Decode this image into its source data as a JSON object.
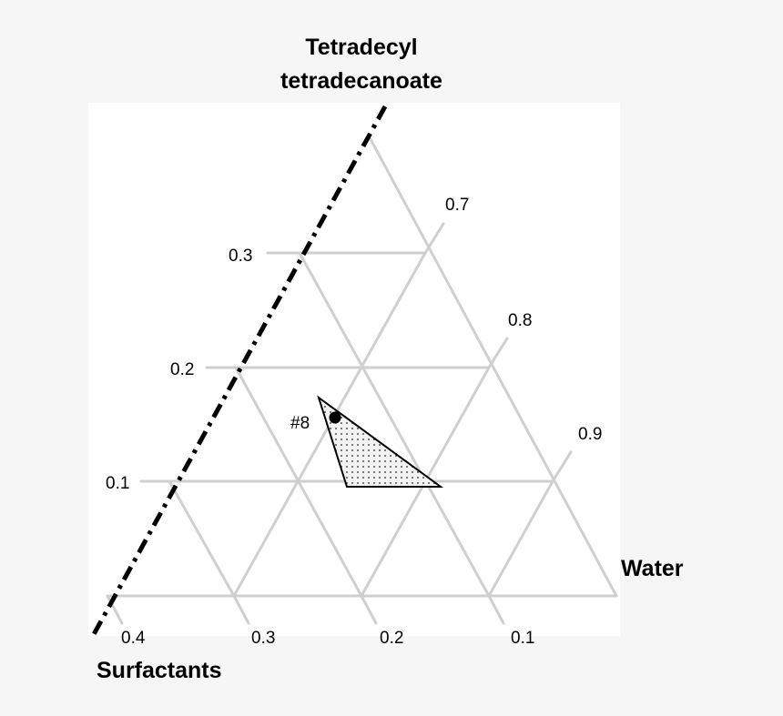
{
  "diagram": {
    "type": "ternary-phase-diagram",
    "corner_labels": {
      "top_line1": "Tetradecyl",
      "top_line2": "tetradecanoate",
      "right": "Water",
      "bottom_left": "Surfactants"
    },
    "left_axis_ticks": [
      "0.3",
      "0.2",
      "0.1"
    ],
    "right_axis_ticks": [
      "0.7",
      "0.8",
      "0.9"
    ],
    "bottom_axis_ticks": [
      "0.4",
      "0.3",
      "0.2",
      "0.1"
    ],
    "sample_label": "#8",
    "colors": {
      "grid": "#cfcfcf",
      "boundary": "#000000",
      "region_fill": "#e9e9e9",
      "background": "#f6f6f6",
      "panel": "#ffffff"
    }
  }
}
